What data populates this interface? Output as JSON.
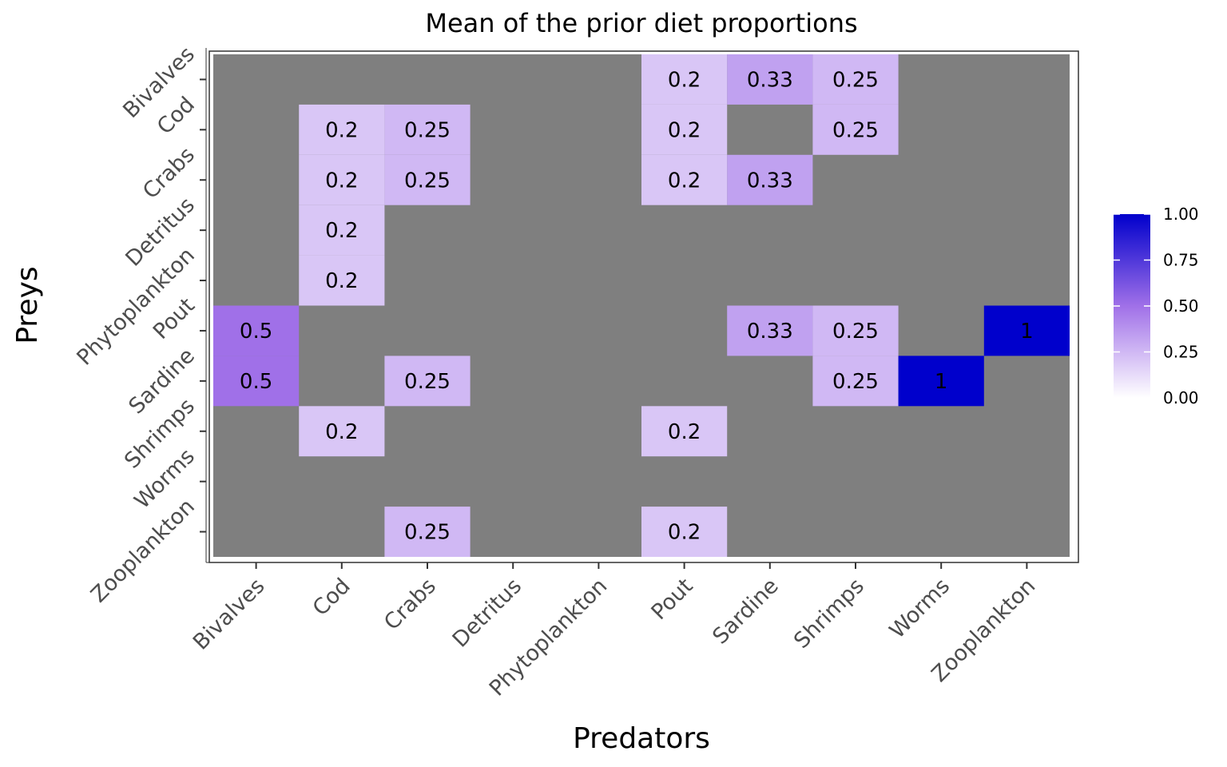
{
  "chart_data": {
    "type": "heatmap",
    "title": "Mean of the prior diet proportions",
    "xlabel": "Predators",
    "ylabel": "Preys",
    "x_categories": [
      "Bivalves",
      "Cod",
      "Crabs",
      "Detritus",
      "Phytoplankton",
      "Pout",
      "Sardine",
      "Shrimps",
      "Worms",
      "Zooplankton"
    ],
    "y_categories": [
      "Bivalves",
      "Cod",
      "Crabs",
      "Detritus",
      "Phytoplankton",
      "Pout",
      "Sardine",
      "Shrimps",
      "Worms",
      "Zooplankton"
    ],
    "cells": [
      {
        "predator": "Pout",
        "prey": "Bivalves",
        "value": 0.2,
        "label": "0.2"
      },
      {
        "predator": "Sardine",
        "prey": "Bivalves",
        "value": 0.33,
        "label": "0.33"
      },
      {
        "predator": "Shrimps",
        "prey": "Bivalves",
        "value": 0.25,
        "label": "0.25"
      },
      {
        "predator": "Cod",
        "prey": "Cod",
        "value": 0.2,
        "label": "0.2"
      },
      {
        "predator": "Crabs",
        "prey": "Cod",
        "value": 0.25,
        "label": "0.25"
      },
      {
        "predator": "Pout",
        "prey": "Cod",
        "value": 0.2,
        "label": "0.2"
      },
      {
        "predator": "Shrimps",
        "prey": "Cod",
        "value": 0.25,
        "label": "0.25"
      },
      {
        "predator": "Cod",
        "prey": "Crabs",
        "value": 0.2,
        "label": "0.2"
      },
      {
        "predator": "Crabs",
        "prey": "Crabs",
        "value": 0.25,
        "label": "0.25"
      },
      {
        "predator": "Pout",
        "prey": "Crabs",
        "value": 0.2,
        "label": "0.2"
      },
      {
        "predator": "Sardine",
        "prey": "Crabs",
        "value": 0.33,
        "label": "0.33"
      },
      {
        "predator": "Cod",
        "prey": "Detritus",
        "value": 0.2,
        "label": "0.2"
      },
      {
        "predator": "Cod",
        "prey": "Phytoplankton",
        "value": 0.2,
        "label": "0.2"
      },
      {
        "predator": "Bivalves",
        "prey": "Pout",
        "value": 0.5,
        "label": "0.5"
      },
      {
        "predator": "Sardine",
        "prey": "Pout",
        "value": 0.33,
        "label": "0.33"
      },
      {
        "predator": "Shrimps",
        "prey": "Pout",
        "value": 0.25,
        "label": "0.25"
      },
      {
        "predator": "Zooplankton",
        "prey": "Pout",
        "value": 1,
        "label": "1"
      },
      {
        "predator": "Bivalves",
        "prey": "Sardine",
        "value": 0.5,
        "label": "0.5"
      },
      {
        "predator": "Crabs",
        "prey": "Sardine",
        "value": 0.25,
        "label": "0.25"
      },
      {
        "predator": "Shrimps",
        "prey": "Sardine",
        "value": 0.25,
        "label": "0.25"
      },
      {
        "predator": "Worms",
        "prey": "Sardine",
        "value": 1,
        "label": "1"
      },
      {
        "predator": "Cod",
        "prey": "Shrimps",
        "value": 0.2,
        "label": "0.2"
      },
      {
        "predator": "Pout",
        "prey": "Shrimps",
        "value": 0.2,
        "label": "0.2"
      },
      {
        "predator": "Crabs",
        "prey": "Zooplankton",
        "value": 0.25,
        "label": "0.25"
      },
      {
        "predator": "Pout",
        "prey": "Zooplankton",
        "value": 0.2,
        "label": "0.2"
      }
    ],
    "value_range": [
      0,
      1
    ],
    "color_scale": {
      "low": "#ffffff",
      "mid": "#a070e8",
      "high": "#0000cc"
    },
    "na_color": "#7f7f7f",
    "legend": {
      "placement": "right",
      "ticks": [
        {
          "value": 0,
          "label": "0.00"
        },
        {
          "value": 0.25,
          "label": "0.25"
        },
        {
          "value": 0.5,
          "label": "0.50"
        },
        {
          "value": 0.75,
          "label": "0.75"
        },
        {
          "value": 1,
          "label": "1.00"
        }
      ]
    },
    "grid": false
  }
}
